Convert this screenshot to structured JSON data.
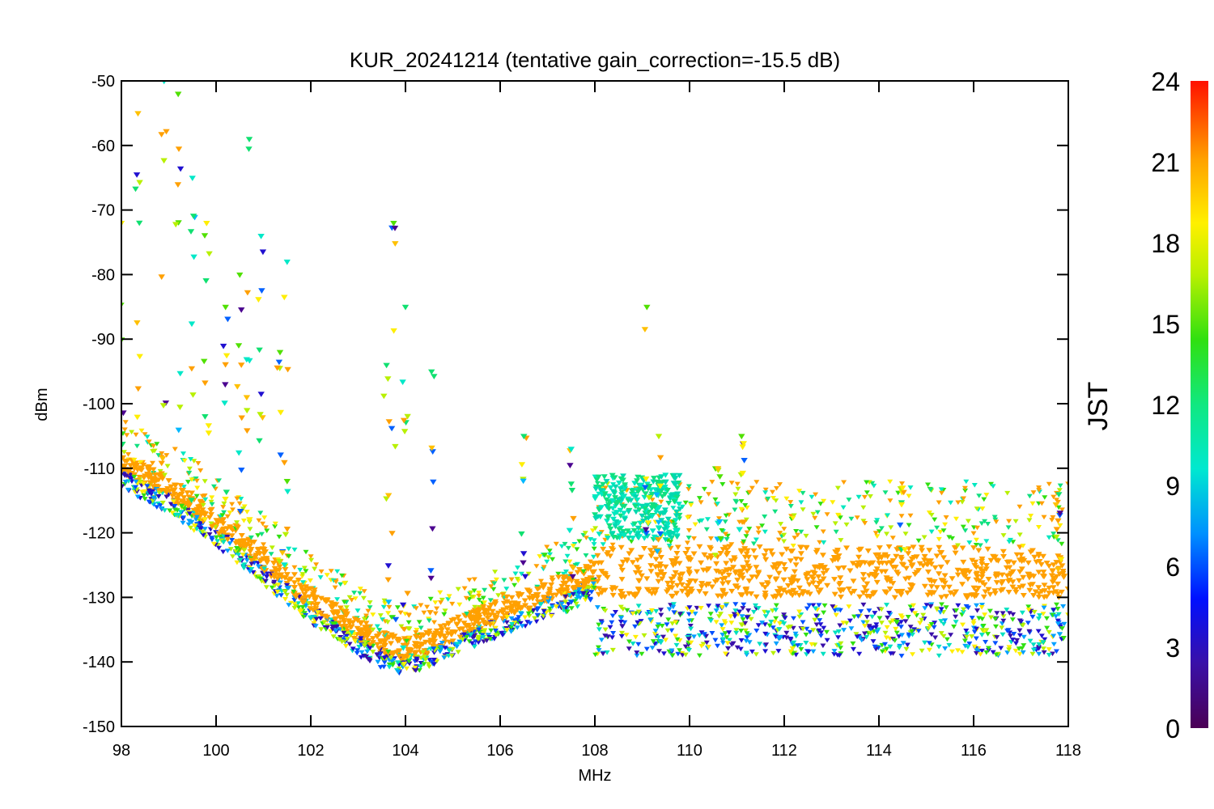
{
  "chart_data": {
    "type": "scatter",
    "title": "KUR_20241214 (tentative gain_correction=-15.5 dB)",
    "xlabel": "MHz",
    "ylabel": "dBm",
    "xlim": [
      98,
      118
    ],
    "ylim": [
      -150,
      -50
    ],
    "xticks": [
      "98",
      "100",
      "102",
      "104",
      "106",
      "108",
      "110",
      "112",
      "114",
      "116",
      "118"
    ],
    "yticks": [
      "-50",
      "-60",
      "-70",
      "-80",
      "-90",
      "-100",
      "-110",
      "-120",
      "-130",
      "-140",
      "-150"
    ],
    "colorbar": {
      "label": "JST",
      "range": [
        0,
        24
      ],
      "ticks": [
        "24",
        "21",
        "18",
        "15",
        "12",
        "9",
        "6",
        "3",
        "0"
      ],
      "colormap": "rainbow (purple to red)"
    },
    "grid": false,
    "noise_floor": [
      {
        "x": 98,
        "y": -109
      },
      {
        "x": 99,
        "y": -113
      },
      {
        "x": 100,
        "y": -118
      },
      {
        "x": 101,
        "y": -124
      },
      {
        "x": 102,
        "y": -130
      },
      {
        "x": 103,
        "y": -135
      },
      {
        "x": 103.5,
        "y": -137
      },
      {
        "x": 104,
        "y": -138
      },
      {
        "x": 104.5,
        "y": -137
      },
      {
        "x": 105,
        "y": -135
      },
      {
        "x": 106,
        "y": -132
      },
      {
        "x": 107,
        "y": -129
      },
      {
        "x": 107.5,
        "y": -128
      },
      {
        "x": 108,
        "y": -126
      },
      {
        "x": 110,
        "y": -126
      },
      {
        "x": 112,
        "y": -126
      },
      {
        "x": 114,
        "y": -126
      },
      {
        "x": 116,
        "y": -126
      },
      {
        "x": 118,
        "y": -126
      }
    ],
    "spikes": [
      {
        "x": 98.0,
        "y_max": -72
      },
      {
        "x": 98.35,
        "y_max": -55
      },
      {
        "x": 98.9,
        "y_max": -50
      },
      {
        "x": 99.2,
        "y_max": -52
      },
      {
        "x": 99.5,
        "y_max": -65
      },
      {
        "x": 99.8,
        "y_max": -72
      },
      {
        "x": 100.2,
        "y_max": -85
      },
      {
        "x": 100.5,
        "y_max": -80
      },
      {
        "x": 100.7,
        "y_max": -59
      },
      {
        "x": 100.95,
        "y_max": -74
      },
      {
        "x": 101.35,
        "y_max": -92
      },
      {
        "x": 101.5,
        "y_max": -78
      },
      {
        "x": 103.6,
        "y_max": -94
      },
      {
        "x": 103.75,
        "y_max": -72
      },
      {
        "x": 104.0,
        "y_max": -85
      },
      {
        "x": 104.55,
        "y_max": -95
      },
      {
        "x": 106.5,
        "y_max": -105
      },
      {
        "x": 107.5,
        "y_max": -107
      },
      {
        "x": 109.1,
        "y_max": -85
      },
      {
        "x": 109.35,
        "y_max": -105
      },
      {
        "x": 110.6,
        "y_max": -110
      },
      {
        "x": 111.1,
        "y_max": -105
      },
      {
        "x": 114.5,
        "y_max": -113
      },
      {
        "x": 117.8,
        "y_max": -114
      }
    ]
  }
}
